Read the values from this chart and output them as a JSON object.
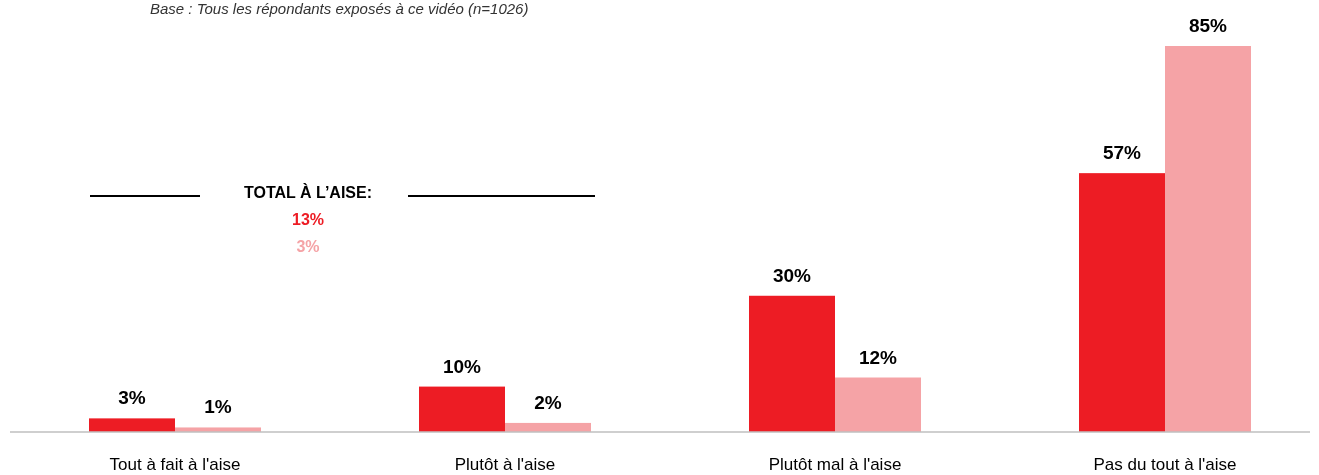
{
  "chart_data": {
    "type": "bar",
    "subtitle": "Base : Tous les répondants exposés à ce vidéo (n=1026)",
    "categories": [
      "Tout à fait à l'aise",
      "Plutôt à l'aise",
      "Plutôt mal à l'aise",
      "Pas du tout à l'aise"
    ],
    "series": [
      {
        "color": "#ed1c24",
        "values": [
          3,
          10,
          30,
          57
        ],
        "value_labels": [
          "3%",
          "10%",
          "30%",
          "57%"
        ]
      },
      {
        "color": "#f5a3a6",
        "values": [
          1,
          2,
          12,
          85
        ],
        "value_labels": [
          "1%",
          "2%",
          "12%",
          "85%"
        ]
      }
    ],
    "annotations": [
      "TOTAL À L’AISE:",
      "13%",
      "3%"
    ]
  }
}
